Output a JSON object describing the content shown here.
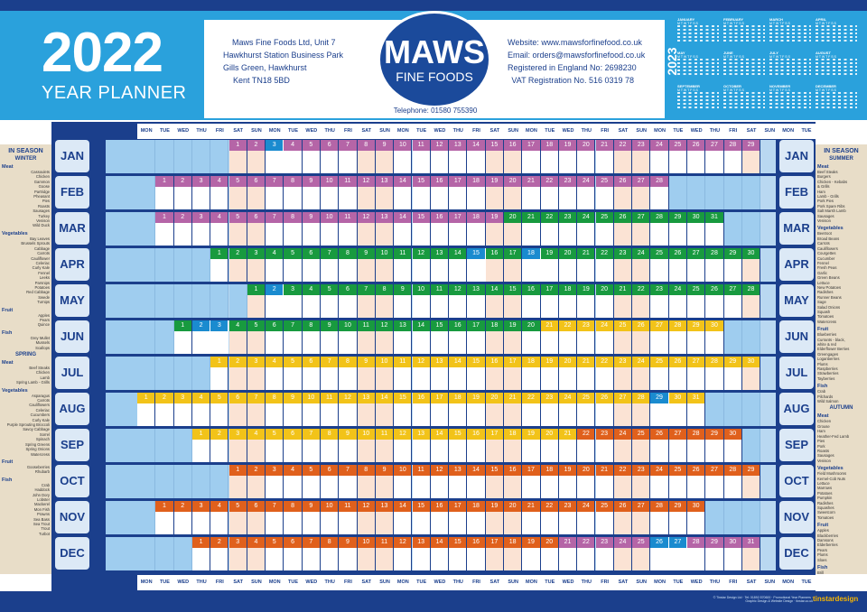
{
  "header": {
    "year": "2022",
    "subtitle": "YEAR PLANNER",
    "address_lines": [
      "Maws Fine Foods Ltd, Unit 7",
      "Hawkhurst Station Business Park",
      "Gills Green, Hawkhurst",
      "Kent  TN18 5BD"
    ],
    "contact_lines": [
      "Website: www.mawsforfinefood.co.uk",
      "Email: orders@mawsforfinefood.co.uk",
      "Registered in England No: 2698230",
      "VAT Registration No. 516 0319 78"
    ],
    "telephone": "Telephone: 01580 755390",
    "logo_main": "MAWS",
    "logo_sub": "FINE FOODS",
    "next_year": "2023",
    "next_year_months": [
      "JANUARY",
      "FEBRUARY",
      "MARCH",
      "APRIL",
      "MAY",
      "JUNE",
      "JULY",
      "AUGUST",
      "SEPTEMBER",
      "OCTOBER",
      "NOVEMBER",
      "DECEMBER"
    ],
    "mini_dow": "M T W T F S S"
  },
  "grid": {
    "dow_labels": [
      "MON",
      "TUE",
      "WED",
      "THU",
      "FRI",
      "SAT",
      "SUN",
      "MON",
      "TUE",
      "WED",
      "THU",
      "FRI",
      "SAT",
      "SUN",
      "MON",
      "TUE",
      "WED",
      "THU",
      "FRI",
      "SAT",
      "SUN",
      "MON",
      "TUE",
      "WED",
      "THU",
      "FRI",
      "SAT",
      "SUN",
      "MON",
      "TUE",
      "WED",
      "THU",
      "FRI",
      "SAT",
      "SUN",
      "MON",
      "TUE"
    ],
    "months": [
      "JAN",
      "FEB",
      "MAR",
      "APR",
      "MAY",
      "JUN",
      "JUL",
      "AUG",
      "SEP",
      "OCT",
      "NOV",
      "DEC"
    ],
    "month_start_col": [
      5,
      1,
      1,
      4,
      6,
      2,
      4,
      0,
      3,
      5,
      1,
      3
    ],
    "month_days": [
      31,
      28,
      31,
      30,
      31,
      30,
      31,
      31,
      30,
      31,
      30,
      31
    ],
    "highlight_days": {
      "JAN": [
        3
      ],
      "APR": [
        15,
        18
      ],
      "MAY": [
        2
      ],
      "JUN": [
        2,
        3
      ],
      "AUG": [
        29
      ],
      "DEC": [
        26,
        27
      ]
    },
    "season_colors": {
      "purple": "#b565a7",
      "green": "#189a3f",
      "yellow": "#f2c319",
      "orange": "#e0601c"
    }
  },
  "left_panel": {
    "heading": "IN SEASON",
    "sections": [
      {
        "season": "WINTER",
        "cats": [
          {
            "name": "Meat",
            "items": [
              "Cassoulets",
              "Chicken",
              "Gammon",
              "Goose",
              "Partridge",
              "Pheasant",
              "Pies",
              "Roasts",
              "Sausages",
              "Turkey",
              "Venison",
              "Wild Duck"
            ]
          },
          {
            "name": "Vegetables",
            "items": [
              "Bay Leaves",
              "Brussels Sprouts",
              "Cabbage",
              "Carrots",
              "Cauliflower",
              "Celeriac",
              "Curly Kale",
              "Fennel",
              "Leeks",
              "Parsnips",
              "Potatoes",
              "Red Cabbage",
              "Swede",
              "Turnips"
            ]
          },
          {
            "name": "Fruit",
            "items": [
              "Apples",
              "Pears",
              "Quince"
            ]
          },
          {
            "name": "Fish",
            "items": [
              "Grey Mullet",
              "Mussels",
              "Scallops"
            ]
          }
        ]
      },
      {
        "season": "SPRING",
        "cats": [
          {
            "name": "Meat",
            "items": [
              "Beef Steaks",
              "Chicken",
              "Lamb",
              "Spring Lamb - Grills"
            ]
          },
          {
            "name": "Vegetables",
            "items": [
              "Asparagus",
              "Carrots",
              "Cauliflowers",
              "Celeriac",
              "Cucumbers",
              "Curly Kale",
              "Purple Sprouting Broccoli",
              "Savoy Cabbage",
              "Sorrel",
              "Spinach",
              "Spring Greens",
              "Spring Onions",
              "Watercress"
            ]
          },
          {
            "name": "Fruit",
            "items": [
              "Gooseberries",
              "Rhubarb"
            ]
          },
          {
            "name": "Fish",
            "items": [
              "Crab",
              "Haddock",
              "John Dory",
              "Lobster",
              "Mackerel",
              "Mon Fish",
              "Prawns",
              "Sea Bass",
              "Sea Trout",
              "Trout",
              "Turbot"
            ]
          }
        ]
      }
    ]
  },
  "right_panel": {
    "heading": "IN SEASON",
    "sections": [
      {
        "season": "SUMMER",
        "cats": [
          {
            "name": "Meat",
            "items": [
              "Beef Steaks",
              "Burgers",
              "Chicken - Kebabs",
              "& Grills",
              "Ham",
              "Lamb - Grills",
              "Pork Pies",
              "Pork Spare Ribs",
              "Salt Marsh Lamb",
              "Sausages",
              "Venison"
            ]
          },
          {
            "name": "Vegetables",
            "items": [
              "Beetroot",
              "Broad Beans",
              "Carrots",
              "Cauliflowers",
              "Courgettes",
              "Cucumber",
              "Fennel",
              "Fresh Peas",
              "Garlic",
              "Green Beans",
              "Lettuce",
              "New Potatoes",
              "Radishes",
              "Runner Beans",
              "Sage",
              "Salad Onions",
              "Squash",
              "Tomatoes",
              "Watercress"
            ]
          },
          {
            "name": "Fruit",
            "items": [
              "Blueberries",
              "Currants - black,",
              "white & red",
              "Elderflower Berries",
              "Greengages",
              "Loganberries",
              "Plums",
              "Raspberries",
              "Strawberries",
              "Tayberries"
            ]
          },
          {
            "name": "Fish",
            "items": [
              "Crab",
              "Pilchards",
              "Wild Salmon"
            ]
          }
        ]
      },
      {
        "season": "AUTUMN",
        "cats": [
          {
            "name": "Meat",
            "items": [
              "Chicken",
              "Grouse",
              "Ham",
              "Heather-Fed Lamb",
              "Pies",
              "Pork",
              "Roasts",
              "Sausages",
              "Venison"
            ]
          },
          {
            "name": "Vegetables",
            "items": [
              "Field Mushrooms",
              "Kernel-Cob Nuts",
              "Lettuce",
              "Marrows",
              "Potatoes",
              "Pumpkin",
              "Radishes",
              "Squashes",
              "Sweetcorn",
              "Tomatoes"
            ]
          },
          {
            "name": "Fruit",
            "items": [
              "Apples",
              "Blackberries",
              "Damsons",
              "Elderberries",
              "Pears",
              "Plums",
              "Sloes"
            ]
          },
          {
            "name": "Fish",
            "items": [
              "Brill",
              "Dabs",
              "Dover Sole",
              "Mussels",
              "Oysters",
              "Skate"
            ]
          }
        ]
      }
    ]
  },
  "footer": {
    "credit": "© Tinstar Design Ltd · Tel: 01892 870600 · Promotional Year Planners · Graphic Design & Website Design · tinstar.co.uk",
    "brand": "tinstardesign"
  }
}
